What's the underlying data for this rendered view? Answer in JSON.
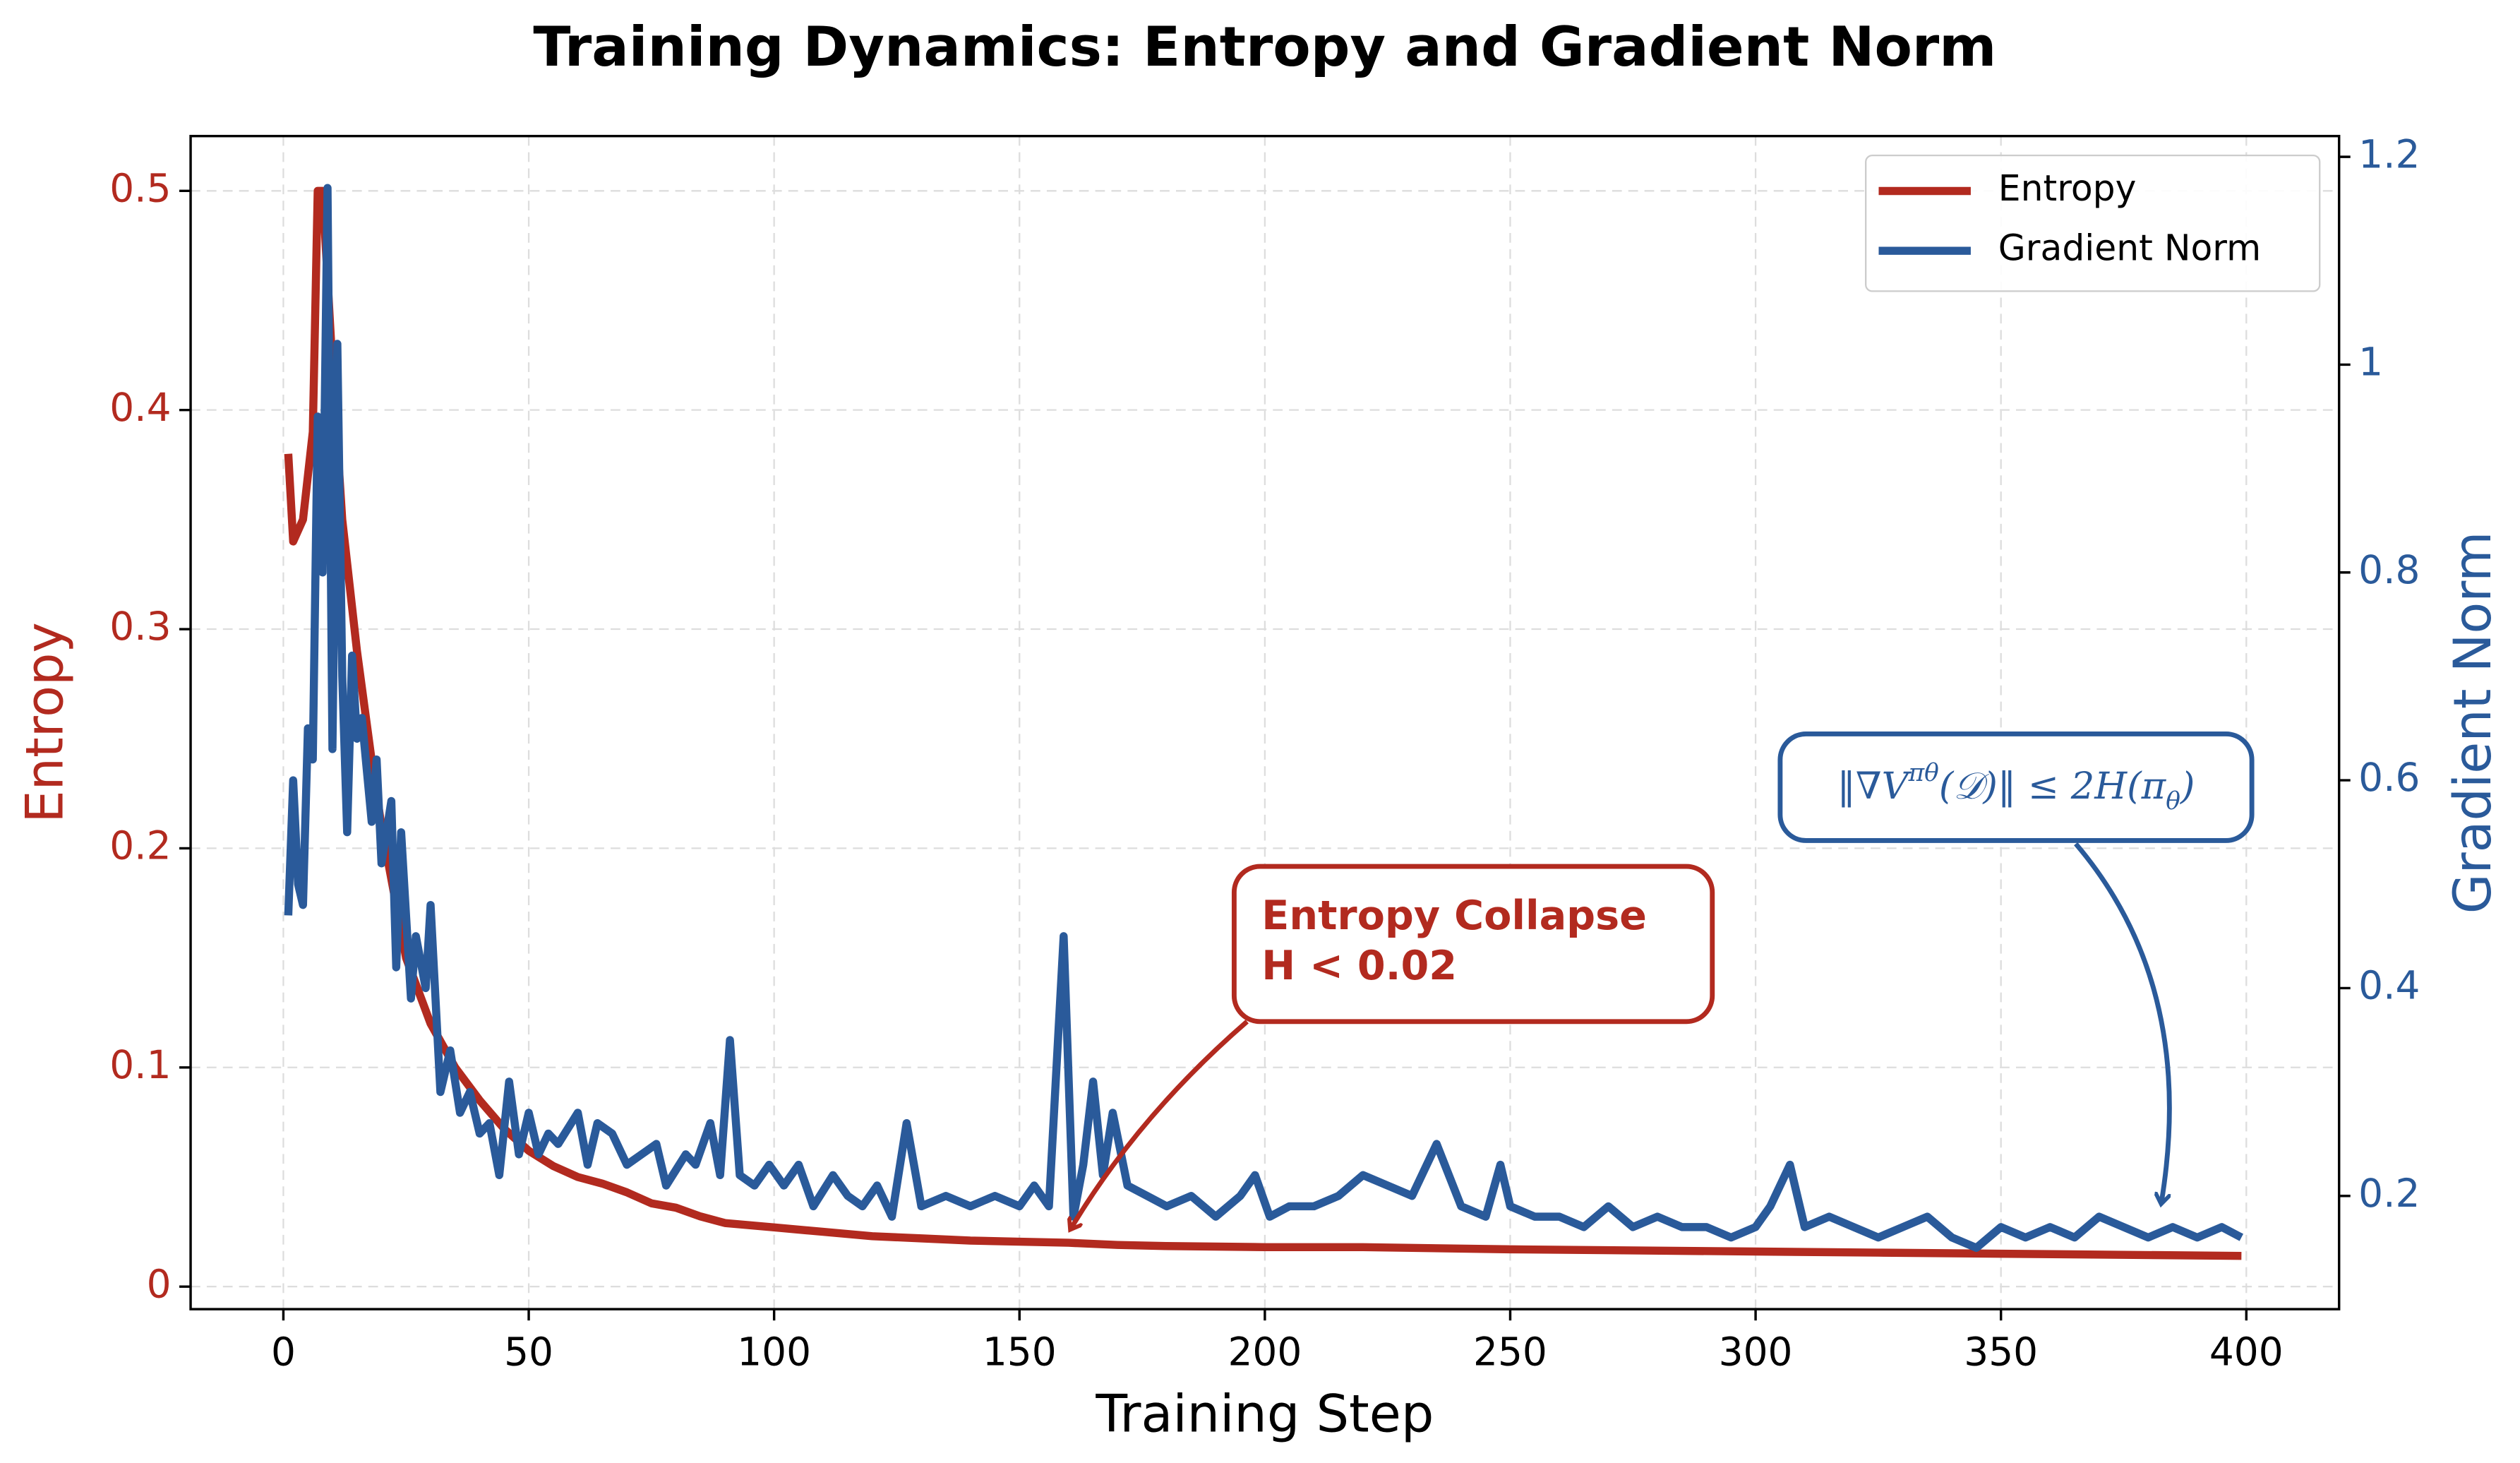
{
  "chart_data": {
    "type": "line",
    "title": "Training Dynamics: Entropy and Gradient Norm",
    "x_label": "Training Step",
    "y_label": "Entropy",
    "y2_label": "Gradient Norm",
    "xlim": [
      -18.9,
      418.9
    ],
    "xticks": [
      0,
      50,
      100,
      150,
      200,
      250,
      300,
      350,
      400
    ],
    "ylim": [
      -0.0103,
      0.525
    ],
    "yticks": [
      0.0,
      0.1,
      0.2,
      0.3,
      0.4,
      0.5
    ],
    "y2lim": [
      0.091,
      1.22
    ],
    "y2ticks": [
      0.2,
      0.4,
      0.6,
      0.8,
      1.0,
      1.2
    ],
    "grid": true,
    "legend": "upper right",
    "series": [
      {
        "name": "Entropy",
        "color": "#b22a1f",
        "x": [
          1,
          2,
          4,
          6,
          7,
          8,
          10,
          12,
          15,
          18,
          20,
          25,
          30,
          35,
          40,
          45,
          50,
          55,
          60,
          65,
          70,
          75,
          80,
          85,
          90,
          100,
          110,
          120,
          130,
          140,
          150,
          160,
          170,
          180,
          200,
          220,
          250,
          275,
          300,
          325,
          350,
          375,
          399
        ],
        "values": [
          0.38,
          0.34,
          0.35,
          0.39,
          0.5,
          0.5,
          0.42,
          0.35,
          0.29,
          0.24,
          0.21,
          0.15,
          0.12,
          0.1,
          0.085,
          0.072,
          0.062,
          0.055,
          0.05,
          0.047,
          0.043,
          0.038,
          0.036,
          0.032,
          0.029,
          0.027,
          0.025,
          0.023,
          0.022,
          0.021,
          0.0205,
          0.02,
          0.019,
          0.0185,
          0.018,
          0.018,
          0.017,
          0.0165,
          0.016,
          0.0155,
          0.015,
          0.0145,
          0.014
        ]
      },
      {
        "name": "Gradient Norm",
        "color": "#2a5a9a",
        "axis": "y2",
        "x": [
          1,
          2,
          3,
          4,
          5,
          6,
          7,
          8,
          9,
          10,
          11,
          12,
          13,
          14,
          15,
          16,
          18,
          19,
          20,
          22,
          23,
          24,
          26,
          27,
          29,
          30,
          32,
          34,
          36,
          38,
          40,
          42,
          44,
          46,
          48,
          50,
          52,
          54,
          56,
          60,
          62,
          64,
          67,
          70,
          73,
          76,
          78,
          82,
          84,
          87,
          89,
          91,
          93,
          96,
          99,
          102,
          105,
          108,
          112,
          115,
          118,
          121,
          124,
          127,
          130,
          135,
          140,
          145,
          150,
          153,
          156,
          159,
          161,
          163,
          165,
          167,
          169,
          172,
          176,
          180,
          185,
          190,
          195,
          198,
          201,
          205,
          210,
          215,
          220,
          225,
          230,
          235,
          240,
          245,
          248,
          250,
          255,
          260,
          265,
          270,
          275,
          280,
          285,
          290,
          295,
          300,
          303,
          307,
          310,
          315,
          320,
          325,
          330,
          335,
          340,
          345,
          350,
          355,
          360,
          365,
          370,
          375,
          380,
          385,
          390,
          395,
          399
        ],
        "values": [
          0.47,
          0.6,
          0.5,
          0.48,
          0.65,
          0.62,
          0.95,
          0.8,
          1.17,
          0.63,
          1.02,
          0.7,
          0.55,
          0.72,
          0.64,
          0.66,
          0.56,
          0.62,
          0.52,
          0.58,
          0.42,
          0.55,
          0.39,
          0.45,
          0.4,
          0.48,
          0.3,
          0.34,
          0.28,
          0.3,
          0.26,
          0.27,
          0.22,
          0.31,
          0.24,
          0.28,
          0.24,
          0.26,
          0.25,
          0.28,
          0.23,
          0.27,
          0.26,
          0.23,
          0.24,
          0.25,
          0.21,
          0.24,
          0.23,
          0.27,
          0.22,
          0.35,
          0.22,
          0.21,
          0.23,
          0.21,
          0.23,
          0.19,
          0.22,
          0.2,
          0.19,
          0.21,
          0.18,
          0.27,
          0.19,
          0.2,
          0.19,
          0.2,
          0.19,
          0.21,
          0.19,
          0.45,
          0.18,
          0.23,
          0.31,
          0.22,
          0.28,
          0.21,
          0.2,
          0.19,
          0.2,
          0.18,
          0.2,
          0.22,
          0.18,
          0.19,
          0.19,
          0.2,
          0.22,
          0.21,
          0.2,
          0.25,
          0.19,
          0.18,
          0.23,
          0.19,
          0.18,
          0.18,
          0.17,
          0.19,
          0.17,
          0.18,
          0.17,
          0.17,
          0.16,
          0.17,
          0.19,
          0.23,
          0.17,
          0.18,
          0.17,
          0.16,
          0.17,
          0.18,
          0.16,
          0.15,
          0.17,
          0.16,
          0.17,
          0.16,
          0.18,
          0.17,
          0.16,
          0.17,
          0.16,
          0.17,
          0.16
        ]
      }
    ],
    "annotations": [
      {
        "lines": [
          "Entropy Collapse",
          "H < 0.02"
        ]
      },
      {
        "parts": [
          {
            "text": "‖∇V"
          },
          {
            "text": "πθ",
            "sup": true
          },
          {
            "text": "(𝒟)‖ ≤ 2H(π"
          },
          {
            "text": "θ",
            "sub": true
          },
          {
            "text": ")"
          }
        ]
      }
    ]
  }
}
